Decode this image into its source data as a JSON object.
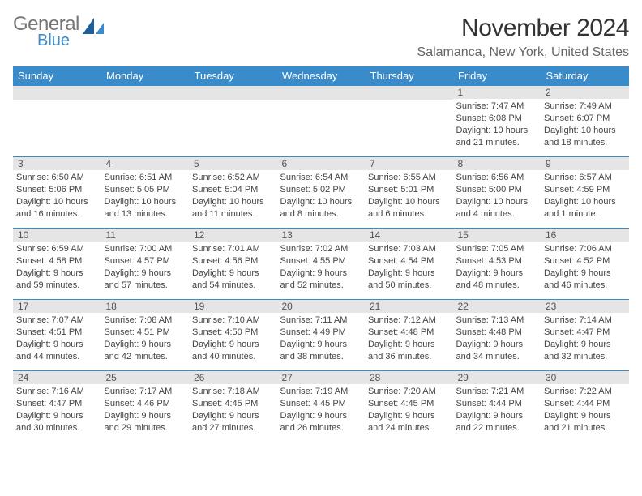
{
  "brand": {
    "line1": "General",
    "line2": "Blue"
  },
  "title": {
    "month": "November 2024",
    "location": "Salamanca, New York, United States"
  },
  "colors": {
    "header_bg": "#3a8bc9",
    "header_text": "#ffffff",
    "daybar_bg": "#e5e5e5",
    "border": "#3a8bc9",
    "body_text": "#444444",
    "brand_gray": "#767676",
    "brand_blue": "#3a8bc9",
    "page_bg": "#ffffff"
  },
  "typography": {
    "month_fontsize": 30,
    "location_fontsize": 16,
    "dayhead_fontsize": 13,
    "cell_fontsize": 11,
    "font_family": "Arial"
  },
  "calendar": {
    "type": "table",
    "columns": [
      "Sunday",
      "Monday",
      "Tuesday",
      "Wednesday",
      "Thursday",
      "Friday",
      "Saturday"
    ],
    "weeks": [
      [
        null,
        null,
        null,
        null,
        null,
        {
          "n": "1",
          "sr": "7:47 AM",
          "ss": "6:08 PM",
          "dl": "10 hours and 21 minutes."
        },
        {
          "n": "2",
          "sr": "7:49 AM",
          "ss": "6:07 PM",
          "dl": "10 hours and 18 minutes."
        }
      ],
      [
        {
          "n": "3",
          "sr": "6:50 AM",
          "ss": "5:06 PM",
          "dl": "10 hours and 16 minutes."
        },
        {
          "n": "4",
          "sr": "6:51 AM",
          "ss": "5:05 PM",
          "dl": "10 hours and 13 minutes."
        },
        {
          "n": "5",
          "sr": "6:52 AM",
          "ss": "5:04 PM",
          "dl": "10 hours and 11 minutes."
        },
        {
          "n": "6",
          "sr": "6:54 AM",
          "ss": "5:02 PM",
          "dl": "10 hours and 8 minutes."
        },
        {
          "n": "7",
          "sr": "6:55 AM",
          "ss": "5:01 PM",
          "dl": "10 hours and 6 minutes."
        },
        {
          "n": "8",
          "sr": "6:56 AM",
          "ss": "5:00 PM",
          "dl": "10 hours and 4 minutes."
        },
        {
          "n": "9",
          "sr": "6:57 AM",
          "ss": "4:59 PM",
          "dl": "10 hours and 1 minute."
        }
      ],
      [
        {
          "n": "10",
          "sr": "6:59 AM",
          "ss": "4:58 PM",
          "dl": "9 hours and 59 minutes."
        },
        {
          "n": "11",
          "sr": "7:00 AM",
          "ss": "4:57 PM",
          "dl": "9 hours and 57 minutes."
        },
        {
          "n": "12",
          "sr": "7:01 AM",
          "ss": "4:56 PM",
          "dl": "9 hours and 54 minutes."
        },
        {
          "n": "13",
          "sr": "7:02 AM",
          "ss": "4:55 PM",
          "dl": "9 hours and 52 minutes."
        },
        {
          "n": "14",
          "sr": "7:03 AM",
          "ss": "4:54 PM",
          "dl": "9 hours and 50 minutes."
        },
        {
          "n": "15",
          "sr": "7:05 AM",
          "ss": "4:53 PM",
          "dl": "9 hours and 48 minutes."
        },
        {
          "n": "16",
          "sr": "7:06 AM",
          "ss": "4:52 PM",
          "dl": "9 hours and 46 minutes."
        }
      ],
      [
        {
          "n": "17",
          "sr": "7:07 AM",
          "ss": "4:51 PM",
          "dl": "9 hours and 44 minutes."
        },
        {
          "n": "18",
          "sr": "7:08 AM",
          "ss": "4:51 PM",
          "dl": "9 hours and 42 minutes."
        },
        {
          "n": "19",
          "sr": "7:10 AM",
          "ss": "4:50 PM",
          "dl": "9 hours and 40 minutes."
        },
        {
          "n": "20",
          "sr": "7:11 AM",
          "ss": "4:49 PM",
          "dl": "9 hours and 38 minutes."
        },
        {
          "n": "21",
          "sr": "7:12 AM",
          "ss": "4:48 PM",
          "dl": "9 hours and 36 minutes."
        },
        {
          "n": "22",
          "sr": "7:13 AM",
          "ss": "4:48 PM",
          "dl": "9 hours and 34 minutes."
        },
        {
          "n": "23",
          "sr": "7:14 AM",
          "ss": "4:47 PM",
          "dl": "9 hours and 32 minutes."
        }
      ],
      [
        {
          "n": "24",
          "sr": "7:16 AM",
          "ss": "4:47 PM",
          "dl": "9 hours and 30 minutes."
        },
        {
          "n": "25",
          "sr": "7:17 AM",
          "ss": "4:46 PM",
          "dl": "9 hours and 29 minutes."
        },
        {
          "n": "26",
          "sr": "7:18 AM",
          "ss": "4:45 PM",
          "dl": "9 hours and 27 minutes."
        },
        {
          "n": "27",
          "sr": "7:19 AM",
          "ss": "4:45 PM",
          "dl": "9 hours and 26 minutes."
        },
        {
          "n": "28",
          "sr": "7:20 AM",
          "ss": "4:45 PM",
          "dl": "9 hours and 24 minutes."
        },
        {
          "n": "29",
          "sr": "7:21 AM",
          "ss": "4:44 PM",
          "dl": "9 hours and 22 minutes."
        },
        {
          "n": "30",
          "sr": "7:22 AM",
          "ss": "4:44 PM",
          "dl": "9 hours and 21 minutes."
        }
      ]
    ],
    "labels": {
      "sunrise": "Sunrise:",
      "sunset": "Sunset:",
      "daylight": "Daylight:"
    }
  }
}
